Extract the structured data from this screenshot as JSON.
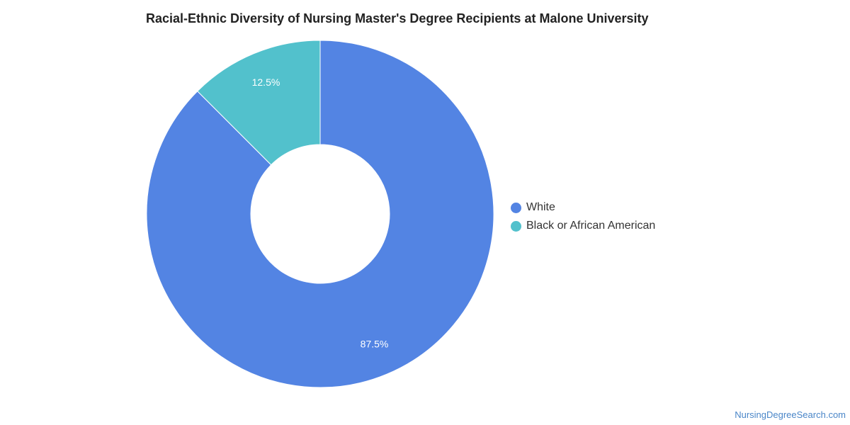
{
  "chart_data": {
    "type": "pie",
    "title": "Racial-Ethnic Diversity of Nursing Master's Degree Recipients at Malone University",
    "donut": true,
    "categories": [
      "White",
      "Black or African American"
    ],
    "values": [
      87.5,
      12.5
    ],
    "data_labels": [
      "87.5%",
      "12.5%"
    ],
    "colors": [
      "#5384e3",
      "#52c1cc"
    ],
    "legend_position": "right"
  },
  "footer": {
    "source_label": "NursingDegreeSearch.com"
  }
}
